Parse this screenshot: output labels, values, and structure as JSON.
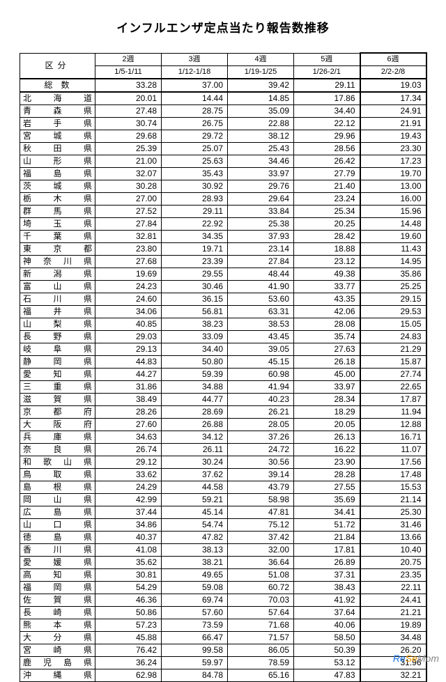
{
  "title": "インフルエンザ定点当たり報告数推移",
  "kubun_label": "区分",
  "weeks": [
    {
      "label": "2週",
      "range": "1/5-1/11"
    },
    {
      "label": "3週",
      "range": "1/12-1/18"
    },
    {
      "label": "4週",
      "range": "1/19-1/25"
    },
    {
      "label": "5週",
      "range": "1/26-2/1"
    },
    {
      "label": "6週",
      "range": "2/2-2/8"
    }
  ],
  "total": {
    "name": "総数",
    "values": [
      "33.28",
      "37.00",
      "39.42",
      "29.11",
      "19.03"
    ]
  },
  "rows": [
    {
      "name": "北海道",
      "values": [
        "20.01",
        "14.44",
        "14.85",
        "17.86",
        "17.34"
      ]
    },
    {
      "name": "青森県",
      "values": [
        "27.48",
        "28.75",
        "35.09",
        "34.40",
        "24.91"
      ]
    },
    {
      "name": "岩手県",
      "values": [
        "30.74",
        "26.75",
        "22.88",
        "22.12",
        "21.91"
      ]
    },
    {
      "name": "宮城県",
      "values": [
        "29.68",
        "29.72",
        "38.12",
        "29.96",
        "19.43"
      ]
    },
    {
      "name": "秋田県",
      "values": [
        "25.39",
        "25.07",
        "25.43",
        "28.56",
        "23.30"
      ]
    },
    {
      "name": "山形県",
      "values": [
        "21.00",
        "25.63",
        "34.46",
        "26.42",
        "17.23"
      ]
    },
    {
      "name": "福島県",
      "values": [
        "32.07",
        "35.43",
        "33.97",
        "27.79",
        "19.70"
      ]
    },
    {
      "name": "茨城県",
      "values": [
        "30.28",
        "30.92",
        "29.76",
        "21.40",
        "13.00"
      ]
    },
    {
      "name": "栃木県",
      "values": [
        "27.00",
        "28.93",
        "29.64",
        "23.24",
        "16.00"
      ]
    },
    {
      "name": "群馬県",
      "values": [
        "27.52",
        "29.11",
        "33.84",
        "25.34",
        "15.96"
      ]
    },
    {
      "name": "埼玉県",
      "values": [
        "27.84",
        "22.92",
        "25.38",
        "20.25",
        "14.48"
      ]
    },
    {
      "name": "千葉県",
      "values": [
        "32.81",
        "34.35",
        "37.93",
        "28.42",
        "19.60"
      ]
    },
    {
      "name": "東京都",
      "values": [
        "23.80",
        "19.71",
        "23.14",
        "18.88",
        "11.43"
      ]
    },
    {
      "name": "神奈川県",
      "values": [
        "27.68",
        "23.39",
        "27.84",
        "23.12",
        "14.95"
      ]
    },
    {
      "name": "新潟県",
      "values": [
        "19.69",
        "29.55",
        "48.44",
        "49.38",
        "35.86"
      ]
    },
    {
      "name": "富山県",
      "values": [
        "24.23",
        "30.46",
        "41.90",
        "33.77",
        "25.25"
      ]
    },
    {
      "name": "石川県",
      "values": [
        "24.60",
        "36.15",
        "53.60",
        "43.35",
        "29.15"
      ]
    },
    {
      "name": "福井県",
      "values": [
        "34.06",
        "56.81",
        "63.31",
        "42.06",
        "29.53"
      ]
    },
    {
      "name": "山梨県",
      "values": [
        "40.85",
        "38.23",
        "38.53",
        "28.08",
        "15.05"
      ]
    },
    {
      "name": "長野県",
      "values": [
        "29.03",
        "33.09",
        "43.45",
        "35.74",
        "24.83"
      ]
    },
    {
      "name": "岐阜県",
      "values": [
        "29.13",
        "34.40",
        "39.05",
        "27.63",
        "21.29"
      ]
    },
    {
      "name": "静岡県",
      "values": [
        "44.83",
        "50.80",
        "45.15",
        "26.18",
        "15.87"
      ]
    },
    {
      "name": "愛知県",
      "values": [
        "44.27",
        "59.39",
        "60.98",
        "45.00",
        "27.74"
      ]
    },
    {
      "name": "三重県",
      "values": [
        "31.86",
        "34.88",
        "41.94",
        "33.97",
        "22.65"
      ]
    },
    {
      "name": "滋賀県",
      "values": [
        "38.49",
        "44.77",
        "40.23",
        "28.34",
        "17.87"
      ]
    },
    {
      "name": "京都府",
      "values": [
        "28.26",
        "28.69",
        "26.21",
        "18.29",
        "11.94"
      ]
    },
    {
      "name": "大阪府",
      "values": [
        "27.60",
        "26.88",
        "28.05",
        "20.05",
        "12.88"
      ]
    },
    {
      "name": "兵庫県",
      "values": [
        "34.63",
        "34.12",
        "37.26",
        "26.13",
        "16.71"
      ]
    },
    {
      "name": "奈良県",
      "values": [
        "26.74",
        "26.11",
        "24.72",
        "16.22",
        "11.07"
      ]
    },
    {
      "name": "和歌山県",
      "values": [
        "29.12",
        "30.24",
        "30.56",
        "23.90",
        "17.56"
      ]
    },
    {
      "name": "鳥取県",
      "values": [
        "33.62",
        "37.62",
        "39.14",
        "28.28",
        "17.48"
      ]
    },
    {
      "name": "島根県",
      "values": [
        "24.29",
        "44.58",
        "43.79",
        "27.55",
        "15.53"
      ]
    },
    {
      "name": "岡山県",
      "values": [
        "42.99",
        "59.21",
        "58.98",
        "35.69",
        "21.14"
      ]
    },
    {
      "name": "広島県",
      "values": [
        "37.44",
        "45.14",
        "47.81",
        "34.41",
        "25.30"
      ]
    },
    {
      "name": "山口県",
      "values": [
        "34.86",
        "54.74",
        "75.12",
        "51.72",
        "31.46"
      ]
    },
    {
      "name": "徳島県",
      "values": [
        "40.37",
        "47.82",
        "37.42",
        "21.84",
        "13.66"
      ]
    },
    {
      "name": "香川県",
      "values": [
        "41.08",
        "38.13",
        "32.00",
        "17.81",
        "10.40"
      ]
    },
    {
      "name": "愛媛県",
      "values": [
        "35.62",
        "38.21",
        "36.64",
        "26.89",
        "20.75"
      ]
    },
    {
      "name": "高知県",
      "values": [
        "30.81",
        "49.65",
        "51.08",
        "37.31",
        "23.35"
      ]
    },
    {
      "name": "福岡県",
      "values": [
        "54.29",
        "59.08",
        "60.72",
        "38.43",
        "22.11"
      ]
    },
    {
      "name": "佐賀県",
      "values": [
        "46.36",
        "69.74",
        "70.03",
        "41.92",
        "24.41"
      ]
    },
    {
      "name": "長崎県",
      "values": [
        "50.86",
        "57.60",
        "57.64",
        "37.64",
        "21.21"
      ]
    },
    {
      "name": "熊本県",
      "values": [
        "57.23",
        "73.59",
        "71.68",
        "40.06",
        "19.89"
      ]
    },
    {
      "name": "大分県",
      "values": [
        "45.88",
        "66.47",
        "71.57",
        "58.50",
        "34.48"
      ]
    },
    {
      "name": "宮崎県",
      "values": [
        "76.42",
        "99.58",
        "86.05",
        "50.39",
        "26.20"
      ]
    },
    {
      "name": "鹿児島県",
      "values": [
        "36.24",
        "59.97",
        "78.59",
        "53.12",
        "31.96"
      ]
    },
    {
      "name": "沖縄県",
      "values": [
        "62.98",
        "84.78",
        "65.16",
        "47.83",
        "32.21"
      ]
    }
  ],
  "watermark": {
    "re": "Re",
    "se": "Se",
    "mom": "Mom"
  },
  "colors": {
    "text": "#000000",
    "bg": "#ffffff",
    "wm_re": "#1473e6",
    "wm_se": "#f39800",
    "wm_mom": "#888888"
  }
}
